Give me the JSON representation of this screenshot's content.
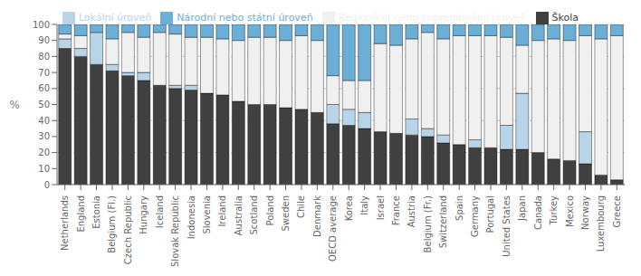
{
  "chart_data": {
    "type": "bar",
    "stacked": true,
    "categories": [
      "Netherlands",
      "England",
      "Estonia",
      "Belgium (Fl.)",
      "Czech Republic",
      "Hungary",
      "Iceland",
      "Slovak Republic",
      "Indonesia",
      "Slovenia",
      "Ireland",
      "Australia",
      "Scotland",
      "Poland",
      "Sweden",
      "Chile",
      "Denmark",
      "OECD average",
      "Korea",
      "Italy",
      "Israel",
      "France",
      "Austria",
      "Belgium (Fr.)",
      "Switzerland",
      "Spain",
      "Germany",
      "Portugal",
      "United States",
      "Japan",
      "Canada",
      "Turkey",
      "Mexico",
      "Norway",
      "Luxembourg",
      "Greece"
    ],
    "series": [
      {
        "name": "Škola",
        "color": "#404040",
        "values": [
          85,
          80,
          75,
          71,
          68,
          65,
          62,
          60,
          59,
          57,
          56,
          52,
          50,
          50,
          48,
          47,
          45,
          38,
          37,
          35,
          33,
          32,
          31,
          30,
          26,
          25,
          23,
          23,
          22,
          22,
          20,
          16,
          15,
          13,
          6,
          3
        ]
      },
      {
        "name": "Lokální úroveň",
        "color": "#b8d4e8",
        "values": [
          6,
          5,
          20,
          4,
          2,
          5,
          0,
          2,
          3,
          0,
          0,
          0,
          0,
          0,
          0,
          0,
          0,
          12,
          10,
          10,
          0,
          0,
          10,
          5,
          5,
          0,
          5,
          0,
          15,
          35,
          0,
          0,
          0,
          20,
          0,
          0
        ]
      },
      {
        "name": "Regionální nebo subregionální úroveň",
        "color": "#f0f0f0",
        "values": [
          3,
          8,
          0,
          16,
          25,
          22,
          33,
          32,
          30,
          35,
          35,
          38,
          42,
          42,
          42,
          46,
          45,
          18,
          18,
          20,
          55,
          55,
          50,
          60,
          60,
          68,
          65,
          70,
          55,
          30,
          70,
          75,
          75,
          60,
          85,
          90
        ]
      },
      {
        "name": "Národní nebo státní úroveň",
        "color": "#6baed6",
        "values": [
          6,
          7,
          5,
          9,
          5,
          8,
          5,
          6,
          8,
          8,
          9,
          10,
          8,
          8,
          10,
          7,
          10,
          32,
          35,
          35,
          12,
          13,
          9,
          5,
          9,
          7,
          7,
          7,
          8,
          13,
          10,
          9,
          10,
          7,
          9,
          7
        ]
      }
    ],
    "ylabel": "%",
    "ylim": [
      0,
      100
    ],
    "yticks": [
      0,
      10,
      20,
      30,
      40,
      50,
      60,
      70,
      80,
      90,
      100
    ],
    "grid": true,
    "legend": "top"
  }
}
